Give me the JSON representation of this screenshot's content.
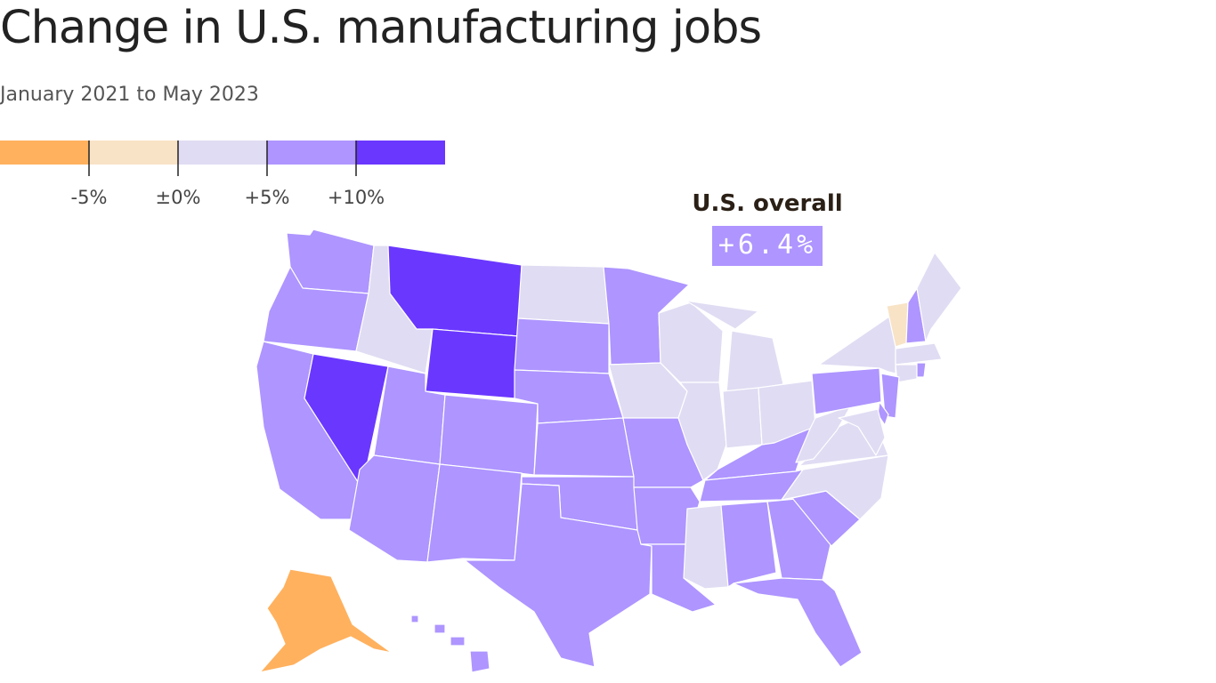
{
  "header": {
    "title": "Change in U.S. manufacturing jobs",
    "subtitle": "January 2021 to May 2023"
  },
  "legend": {
    "bins": [
      {
        "range": "< -5%",
        "color": "#ffb15e"
      },
      {
        "range": "-5% to 0%",
        "color": "#f8e3c6"
      },
      {
        "range": "0% to +5%",
        "color": "#e0dcf3"
      },
      {
        "range": "+5% to +10%",
        "color": "#ae95ff"
      },
      {
        "range": "> +10%",
        "color": "#6a37ff"
      }
    ],
    "ticks": [
      "-5%",
      "±0%",
      "+5%",
      "+10%"
    ]
  },
  "overall": {
    "label": "U.S. overall",
    "value": "+6.4%",
    "color": "#ae95ff"
  },
  "map": {
    "category_colors": {
      "lt_-5": "#ffb15e",
      "-5_to_0": "#f8e3c6",
      "0_to_5": "#e0dcf3",
      "5_to_10": "#ae95ff",
      "gt_10": "#6a37ff"
    },
    "states": [
      {
        "id": "WA",
        "category": "5_to_10"
      },
      {
        "id": "OR",
        "category": "5_to_10"
      },
      {
        "id": "CA",
        "category": "5_to_10"
      },
      {
        "id": "NV",
        "category": "gt_10"
      },
      {
        "id": "ID",
        "category": "0_to_5"
      },
      {
        "id": "MT",
        "category": "gt_10"
      },
      {
        "id": "WY",
        "category": "gt_10"
      },
      {
        "id": "UT",
        "category": "5_to_10"
      },
      {
        "id": "AZ",
        "category": "5_to_10"
      },
      {
        "id": "CO",
        "category": "5_to_10"
      },
      {
        "id": "NM",
        "category": "5_to_10"
      },
      {
        "id": "ND",
        "category": "0_to_5"
      },
      {
        "id": "SD",
        "category": "5_to_10"
      },
      {
        "id": "NE",
        "category": "5_to_10"
      },
      {
        "id": "KS",
        "category": "5_to_10"
      },
      {
        "id": "OK",
        "category": "5_to_10"
      },
      {
        "id": "TX",
        "category": "5_to_10"
      },
      {
        "id": "MN",
        "category": "5_to_10"
      },
      {
        "id": "IA",
        "category": "0_to_5"
      },
      {
        "id": "MO",
        "category": "5_to_10"
      },
      {
        "id": "AR",
        "category": "5_to_10"
      },
      {
        "id": "LA",
        "category": "5_to_10"
      },
      {
        "id": "WI",
        "category": "0_to_5"
      },
      {
        "id": "IL",
        "category": "0_to_5"
      },
      {
        "id": "MI",
        "category": "0_to_5"
      },
      {
        "id": "IN",
        "category": "0_to_5"
      },
      {
        "id": "OH",
        "category": "0_to_5"
      },
      {
        "id": "KY",
        "category": "5_to_10"
      },
      {
        "id": "TN",
        "category": "5_to_10"
      },
      {
        "id": "MS",
        "category": "0_to_5"
      },
      {
        "id": "AL",
        "category": "5_to_10"
      },
      {
        "id": "GA",
        "category": "5_to_10"
      },
      {
        "id": "FL",
        "category": "5_to_10"
      },
      {
        "id": "SC",
        "category": "5_to_10"
      },
      {
        "id": "NC",
        "category": "0_to_5"
      },
      {
        "id": "VA",
        "category": "0_to_5"
      },
      {
        "id": "WV",
        "category": "0_to_5"
      },
      {
        "id": "PA",
        "category": "5_to_10"
      },
      {
        "id": "NY",
        "category": "0_to_5"
      },
      {
        "id": "VT",
        "category": "-5_to_0"
      },
      {
        "id": "NH",
        "category": "5_to_10"
      },
      {
        "id": "ME",
        "category": "0_to_5"
      },
      {
        "id": "MA",
        "category": "0_to_5"
      },
      {
        "id": "CT",
        "category": "0_to_5"
      },
      {
        "id": "RI",
        "category": "5_to_10"
      },
      {
        "id": "NJ",
        "category": "5_to_10"
      },
      {
        "id": "DE",
        "category": "5_to_10"
      },
      {
        "id": "MD",
        "category": "0_to_5"
      },
      {
        "id": "AK",
        "category": "lt_-5"
      },
      {
        "id": "HI",
        "category": "5_to_10"
      }
    ]
  }
}
